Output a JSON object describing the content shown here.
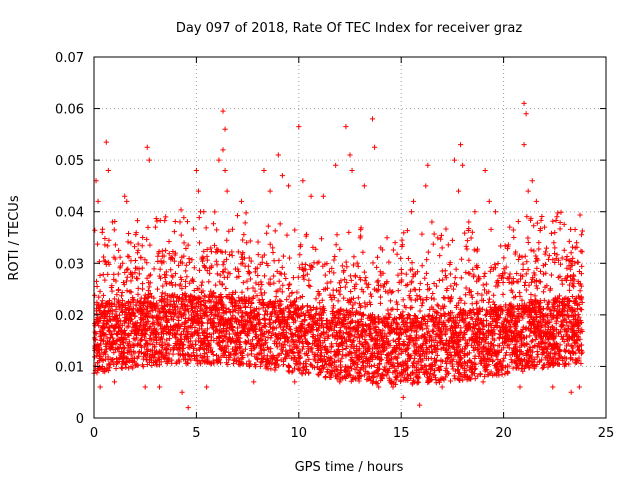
{
  "colors": {
    "marker": "#ff0000",
    "grid": "#a0a0a0",
    "axis": "#000000",
    "background": "#ffffff"
  },
  "chart_data": {
    "type": "scatter",
    "title": "Day 097 of 2018, Rate Of TEC Index for receiver graz",
    "xlabel": "GPS time / hours",
    "ylabel": "ROTI / TECUs",
    "xlim": [
      0,
      25
    ],
    "ylim": [
      0,
      0.07
    ],
    "x_ticks": [
      "0",
      "5",
      "10",
      "15",
      "20",
      "25"
    ],
    "y_ticks": [
      "0",
      "0.01",
      "0.02",
      "0.03",
      "0.04",
      "0.05",
      "0.06",
      "0.07"
    ],
    "grid": true,
    "marker": "+",
    "series": [
      {
        "points": [
          [
            0.1,
            0.046
          ],
          [
            0.2,
            0.042
          ],
          [
            0.4,
            0.036
          ],
          [
            0.6,
            0.0535
          ],
          [
            0.7,
            0.048
          ],
          [
            0.9,
            0.038
          ],
          [
            1.4,
            0.03
          ],
          [
            1.5,
            0.043
          ],
          [
            1.6,
            0.042
          ],
          [
            2.1,
            0.029
          ],
          [
            2.6,
            0.0525
          ],
          [
            2.7,
            0.05
          ],
          [
            3.0,
            0.037
          ],
          [
            3.5,
            0.039
          ],
          [
            4.2,
            0.038
          ],
          [
            4.3,
            0.005
          ],
          [
            4.6,
            0.002
          ],
          [
            5.0,
            0.048
          ],
          [
            5.1,
            0.044
          ],
          [
            5.2,
            0.04
          ],
          [
            6.1,
            0.05
          ],
          [
            6.3,
            0.0595
          ],
          [
            6.4,
            0.056
          ],
          [
            6.3,
            0.052
          ],
          [
            6.4,
            0.048
          ],
          [
            6.5,
            0.044
          ],
          [
            7.2,
            0.042
          ],
          [
            8.3,
            0.048
          ],
          [
            8.6,
            0.044
          ],
          [
            9.0,
            0.051
          ],
          [
            9.2,
            0.047
          ],
          [
            9.5,
            0.045
          ],
          [
            10.0,
            0.0565
          ],
          [
            10.2,
            0.046
          ],
          [
            10.6,
            0.043
          ],
          [
            11.2,
            0.043
          ],
          [
            11.8,
            0.049
          ],
          [
            12.3,
            0.0565
          ],
          [
            12.5,
            0.051
          ],
          [
            12.6,
            0.048
          ],
          [
            13.2,
            0.045
          ],
          [
            13.6,
            0.058
          ],
          [
            13.7,
            0.0525
          ],
          [
            14.0,
            0.033
          ],
          [
            14.6,
            0.006
          ],
          [
            15.1,
            0.004
          ],
          [
            15.5,
            0.04
          ],
          [
            15.6,
            0.042
          ],
          [
            15.9,
            0.0025
          ],
          [
            16.3,
            0.049
          ],
          [
            16.2,
            0.045
          ],
          [
            16.5,
            0.038
          ],
          [
            17.0,
            0.033
          ],
          [
            17.6,
            0.05
          ],
          [
            17.8,
            0.044
          ],
          [
            17.9,
            0.053
          ],
          [
            18.0,
            0.049
          ],
          [
            18.3,
            0.038
          ],
          [
            18.6,
            0.04
          ],
          [
            19.1,
            0.048
          ],
          [
            19.3,
            0.042
          ],
          [
            19.6,
            0.04
          ],
          [
            20.3,
            0.037
          ],
          [
            20.5,
            0.035
          ],
          [
            21.0,
            0.061
          ],
          [
            21.1,
            0.059
          ],
          [
            21.0,
            0.053
          ],
          [
            21.2,
            0.044
          ],
          [
            21.4,
            0.046
          ],
          [
            21.6,
            0.042
          ],
          [
            22.0,
            0.037
          ],
          [
            22.5,
            0.033
          ],
          [
            23.0,
            0.027
          ],
          [
            23.5,
            0.033
          ],
          [
            23.8,
            0.028
          ],
          [
            0.3,
            0.006
          ],
          [
            1.0,
            0.007
          ],
          [
            2.5,
            0.006
          ],
          [
            3.2,
            0.006
          ],
          [
            5.5,
            0.006
          ],
          [
            7.8,
            0.007
          ],
          [
            9.8,
            0.007
          ],
          [
            12.0,
            0.007
          ],
          [
            13.9,
            0.006
          ],
          [
            17.0,
            0.006
          ],
          [
            19.0,
            0.007
          ],
          [
            20.8,
            0.006
          ],
          [
            22.4,
            0.006
          ],
          [
            23.3,
            0.005
          ],
          [
            23.7,
            0.006
          ]
        ]
      }
    ]
  }
}
